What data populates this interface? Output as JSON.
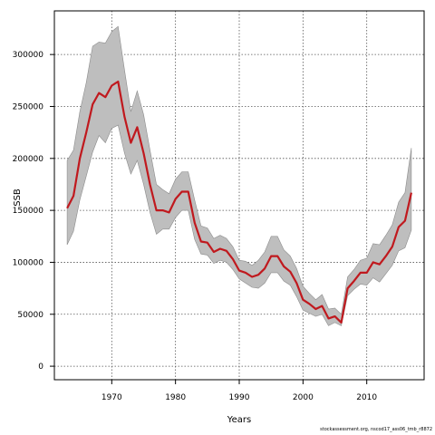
{
  "chart_data": {
    "type": "line",
    "xlabel": "Years",
    "ylabel": "SSB",
    "xlim": [
      1961,
      2019
    ],
    "ylim": [
      -13000,
      342000
    ],
    "xticks": [
      1970,
      1980,
      1990,
      2000,
      2010
    ],
    "yticks": [
      0,
      50000,
      100000,
      150000,
      200000,
      250000,
      300000
    ],
    "grid": true,
    "colors": {
      "line": "#c0191e",
      "band": "#bebebe",
      "band_edge": "#8c8c8c",
      "grid": "#555555"
    },
    "x": [
      1963,
      1964,
      1965,
      1966,
      1967,
      1968,
      1969,
      1970,
      1971,
      1972,
      1973,
      1974,
      1975,
      1976,
      1977,
      1978,
      1979,
      1980,
      1981,
      1982,
      1983,
      1984,
      1985,
      1986,
      1987,
      1988,
      1989,
      1990,
      1991,
      1992,
      1993,
      1994,
      1995,
      1996,
      1997,
      1998,
      1999,
      2000,
      2001,
      2002,
      2003,
      2004,
      2005,
      2006,
      2007,
      2008,
      2009,
      2010,
      2011,
      2012,
      2013,
      2014,
      2015,
      2016,
      2017
    ],
    "series": [
      {
        "values": [
          152000,
          164000,
          200000,
          225000,
          252000,
          263000,
          259000,
          270000,
          274000,
          240000,
          215000,
          230000,
          205000,
          175000,
          150000,
          150000,
          148000,
          161000,
          168000,
          168000,
          138000,
          120000,
          119000,
          110000,
          113000,
          111000,
          103000,
          92000,
          90000,
          86000,
          88000,
          94000,
          106000,
          106000,
          96000,
          91000,
          80000,
          64000,
          60000,
          55000,
          58000,
          46000,
          48000,
          42000,
          75000,
          82000,
          90000,
          90000,
          100000,
          98000,
          106000,
          115000,
          134000,
          140000,
          167000
        ]
      }
    ],
    "band": {
      "lower": [
        117000,
        130000,
        160000,
        183000,
        206000,
        222000,
        215000,
        229000,
        232000,
        205000,
        185000,
        198000,
        175000,
        148000,
        127000,
        132000,
        132000,
        143000,
        150000,
        150000,
        122000,
        108000,
        107000,
        99000,
        102000,
        100000,
        93000,
        84000,
        80000,
        76000,
        75000,
        80000,
        90000,
        90000,
        82000,
        78000,
        67000,
        54000,
        51000,
        48000,
        50000,
        39000,
        42000,
        39000,
        68000,
        74000,
        79000,
        78000,
        85000,
        81000,
        89000,
        97000,
        111000,
        114000,
        131000
      ],
      "upper": [
        198000,
        208000,
        245000,
        273000,
        308000,
        312000,
        311000,
        322000,
        327000,
        285000,
        245000,
        265000,
        242000,
        208000,
        175000,
        170000,
        166000,
        180000,
        187000,
        187000,
        160000,
        135000,
        133000,
        123000,
        126000,
        123000,
        115000,
        102000,
        101000,
        97000,
        102000,
        110000,
        125000,
        125000,
        112000,
        106000,
        94000,
        77000,
        70000,
        64000,
        69000,
        55000,
        56000,
        50000,
        86000,
        93000,
        102000,
        104000,
        118000,
        117000,
        126000,
        136000,
        158000,
        167000,
        210000
      ]
    }
  },
  "footer": {
    "source": "stockassessment.org, nscod17_ass06_tmb_r8872"
  }
}
